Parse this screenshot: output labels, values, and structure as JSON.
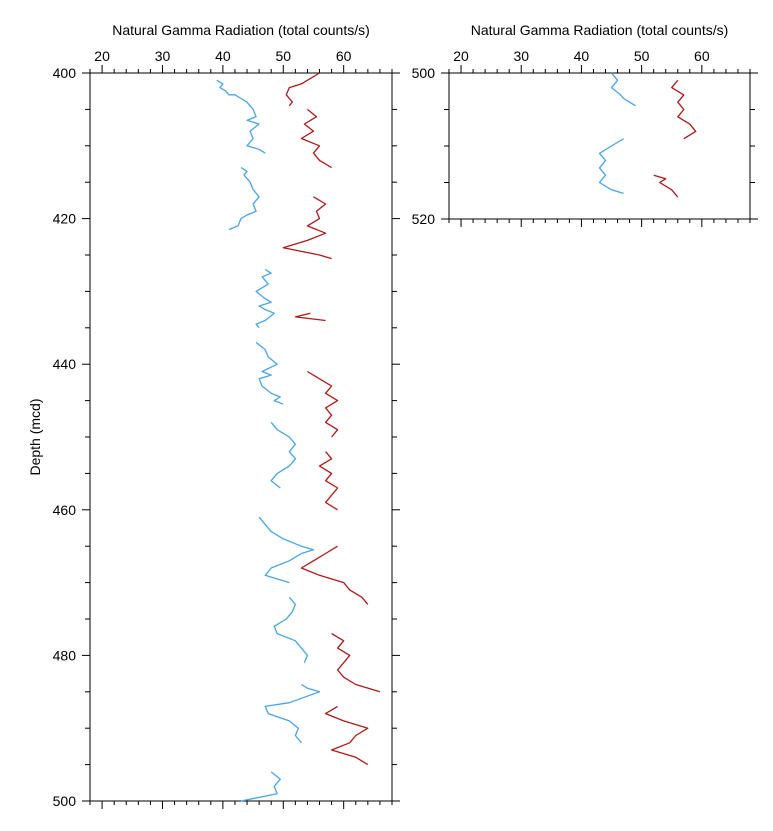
{
  "colors": {
    "blue": "#4aa3e8",
    "red": "#b01818",
    "axis": "#000000"
  },
  "chart_data": [
    {
      "type": "line",
      "xlabel": "Natural Gamma Radiation (total counts/s)",
      "ylabel": "Depth (mcd)",
      "xlim": [
        18,
        68
      ],
      "ylim": [
        400,
        500
      ],
      "y_inverted": true,
      "x_ticks": [
        20,
        30,
        40,
        50,
        60
      ],
      "y_ticks": [
        400,
        420,
        440,
        460,
        480,
        500
      ],
      "grid": false,
      "legend": "none",
      "series": [
        {
          "color": "#4aa3e8",
          "segments": [
            [
              [
                39,
                401
              ],
              [
                40,
                401.5
              ],
              [
                39.5,
                402
              ],
              [
                40.5,
                402.5
              ],
              [
                41,
                403
              ],
              [
                42,
                403
              ],
              [
                43,
                403.5
              ],
              [
                44,
                404
              ],
              [
                45,
                405
              ],
              [
                45.5,
                406
              ],
              [
                44,
                406.5
              ],
              [
                46,
                407
              ],
              [
                44.5,
                408
              ],
              [
                45,
                409
              ],
              [
                44,
                410
              ],
              [
                46,
                410.5
              ],
              [
                47,
                411
              ]
            ],
            [
              [
                43,
                413
              ],
              [
                44,
                413.5
              ],
              [
                43.5,
                414
              ],
              [
                44.5,
                415
              ],
              [
                45,
                416
              ],
              [
                46,
                417
              ],
              [
                45,
                418
              ],
              [
                45.5,
                419
              ],
              [
                44,
                419.5
              ],
              [
                43,
                420
              ],
              [
                42.5,
                421
              ],
              [
                41,
                421.5
              ]
            ],
            [
              [
                47,
                427
              ],
              [
                48,
                427.5
              ],
              [
                46.5,
                428
              ],
              [
                47.5,
                429
              ],
              [
                45.5,
                430
              ],
              [
                47,
                431
              ],
              [
                48,
                431.5
              ],
              [
                46,
                432
              ],
              [
                47,
                432.5
              ],
              [
                48.5,
                433
              ],
              [
                47,
                434
              ],
              [
                45.5,
                434.5
              ],
              [
                46,
                435
              ]
            ],
            [
              [
                45.5,
                437
              ],
              [
                47,
                438
              ],
              [
                47.5,
                439
              ],
              [
                49,
                440
              ],
              [
                46.5,
                441
              ],
              [
                48,
                441.5
              ],
              [
                46,
                442
              ],
              [
                46.5,
                443
              ],
              [
                48,
                444
              ],
              [
                49.5,
                444.5
              ],
              [
                48.5,
                445
              ],
              [
                50,
                445.5
              ]
            ],
            [
              [
                48,
                448
              ],
              [
                49,
                449
              ],
              [
                51,
                450
              ],
              [
                52,
                451
              ],
              [
                51,
                452
              ],
              [
                52,
                453
              ],
              [
                51,
                454
              ],
              [
                49,
                455
              ],
              [
                48,
                456
              ],
              [
                49.5,
                457
              ]
            ],
            [
              [
                46,
                461
              ],
              [
                47,
                462
              ],
              [
                48,
                463
              ],
              [
                50,
                464
              ],
              [
                53,
                465
              ],
              [
                55,
                465.5
              ],
              [
                53,
                466
              ],
              [
                51,
                467
              ],
              [
                48,
                468
              ],
              [
                47,
                469
              ],
              [
                51,
                470
              ]
            ],
            [
              [
                51,
                472
              ],
              [
                52,
                473
              ],
              [
                51.5,
                474
              ],
              [
                50.5,
                475
              ],
              [
                48.5,
                476
              ],
              [
                49,
                477
              ],
              [
                52,
                478
              ],
              [
                53,
                479
              ],
              [
                54,
                480
              ],
              [
                53.5,
                481
              ]
            ],
            [
              [
                53,
                484
              ],
              [
                54,
                484.5
              ],
              [
                56,
                485
              ],
              [
                51,
                486.5
              ],
              [
                47,
                487
              ],
              [
                47.5,
                488
              ],
              [
                51,
                489
              ],
              [
                52.5,
                490
              ],
              [
                52,
                491
              ],
              [
                53,
                492
              ]
            ],
            [
              [
                48,
                496
              ],
              [
                49.5,
                497
              ],
              [
                48.5,
                498
              ],
              [
                49,
                499
              ],
              [
                46,
                499.5
              ],
              [
                43,
                500
              ]
            ]
          ]
        },
        {
          "color": "#b01818",
          "segments": [
            [
              [
                56,
                400
              ],
              [
                54,
                401
              ],
              [
                53,
                401.5
              ],
              [
                51,
                402
              ],
              [
                50.5,
                403
              ],
              [
                51.5,
                404
              ],
              [
                51,
                404.5
              ]
            ],
            [
              [
                54,
                405
              ],
              [
                55.5,
                406
              ],
              [
                53.5,
                407
              ],
              [
                55,
                408
              ],
              [
                53,
                409
              ],
              [
                56,
                410
              ],
              [
                55,
                411
              ],
              [
                56,
                412
              ],
              [
                58,
                413
              ]
            ],
            [
              [
                55,
                417
              ],
              [
                57,
                418
              ],
              [
                55.5,
                419
              ],
              [
                56,
                420
              ],
              [
                54,
                421
              ],
              [
                57,
                422
              ],
              [
                54,
                423
              ],
              [
                50,
                424
              ],
              [
                56,
                425
              ],
              [
                58,
                425.5
              ]
            ],
            [
              [
                54.5,
                433
              ],
              [
                52,
                433.5
              ],
              [
                57,
                434
              ]
            ],
            [
              [
                54,
                441
              ],
              [
                56,
                442
              ],
              [
                58,
                443
              ],
              [
                57,
                444
              ],
              [
                59,
                445
              ],
              [
                57,
                446
              ],
              [
                58,
                447
              ],
              [
                57,
                448
              ],
              [
                59,
                449
              ],
              [
                58,
                450
              ]
            ],
            [
              [
                57,
                452
              ],
              [
                58,
                453
              ],
              [
                56,
                454
              ],
              [
                58,
                455
              ],
              [
                57,
                456
              ],
              [
                59,
                457
              ],
              [
                58,
                458
              ],
              [
                57,
                459
              ],
              [
                59,
                460
              ]
            ],
            [
              [
                59,
                465
              ],
              [
                57,
                466
              ],
              [
                55,
                467
              ],
              [
                53,
                468
              ],
              [
                56,
                469
              ],
              [
                60,
                470
              ],
              [
                61,
                471
              ],
              [
                63,
                472
              ],
              [
                64,
                473
              ]
            ],
            [
              [
                58,
                477
              ],
              [
                60,
                478
              ],
              [
                59,
                479
              ],
              [
                61,
                480
              ],
              [
                60,
                481
              ],
              [
                59,
                482
              ],
              [
                60,
                483
              ],
              [
                62,
                484
              ],
              [
                66,
                485
              ]
            ],
            [
              [
                59,
                487
              ],
              [
                57,
                488
              ],
              [
                60,
                489
              ],
              [
                64,
                490
              ],
              [
                62,
                491
              ],
              [
                61,
                492
              ],
              [
                58,
                493
              ],
              [
                62,
                494
              ],
              [
                64,
                495
              ]
            ]
          ]
        }
      ]
    },
    {
      "type": "line",
      "xlabel": "Natural Gamma Radiation (total counts/s)",
      "ylabel": "",
      "xlim": [
        18,
        68
      ],
      "ylim": [
        500,
        520
      ],
      "y_inverted": true,
      "x_ticks": [
        20,
        30,
        40,
        50,
        60
      ],
      "y_ticks": [
        500,
        520
      ],
      "grid": false,
      "legend": "none",
      "series": [
        {
          "color": "#4aa3e8",
          "segments": [
            [
              [
                45,
                500
              ],
              [
                46,
                501
              ],
              [
                45,
                502
              ],
              [
                46.5,
                503
              ],
              [
                47,
                503.5
              ],
              [
                48,
                504
              ],
              [
                49,
                504.5
              ]
            ],
            [
              [
                47,
                509
              ],
              [
                45,
                510
              ],
              [
                43,
                511
              ],
              [
                44,
                512
              ],
              [
                43,
                513
              ],
              [
                44,
                514
              ],
              [
                43,
                515
              ],
              [
                45,
                516
              ],
              [
                47,
                516.5
              ]
            ]
          ]
        },
        {
          "color": "#b01818",
          "segments": [
            [
              [
                56,
                501
              ],
              [
                55,
                502
              ],
              [
                57,
                503
              ],
              [
                56,
                504
              ],
              [
                57,
                505
              ],
              [
                56,
                506
              ],
              [
                58,
                507
              ],
              [
                59,
                508
              ],
              [
                57,
                509
              ]
            ],
            [
              [
                52,
                514
              ],
              [
                54,
                514.5
              ],
              [
                53,
                515
              ],
              [
                55,
                516
              ],
              [
                56,
                517
              ]
            ]
          ]
        }
      ]
    }
  ]
}
